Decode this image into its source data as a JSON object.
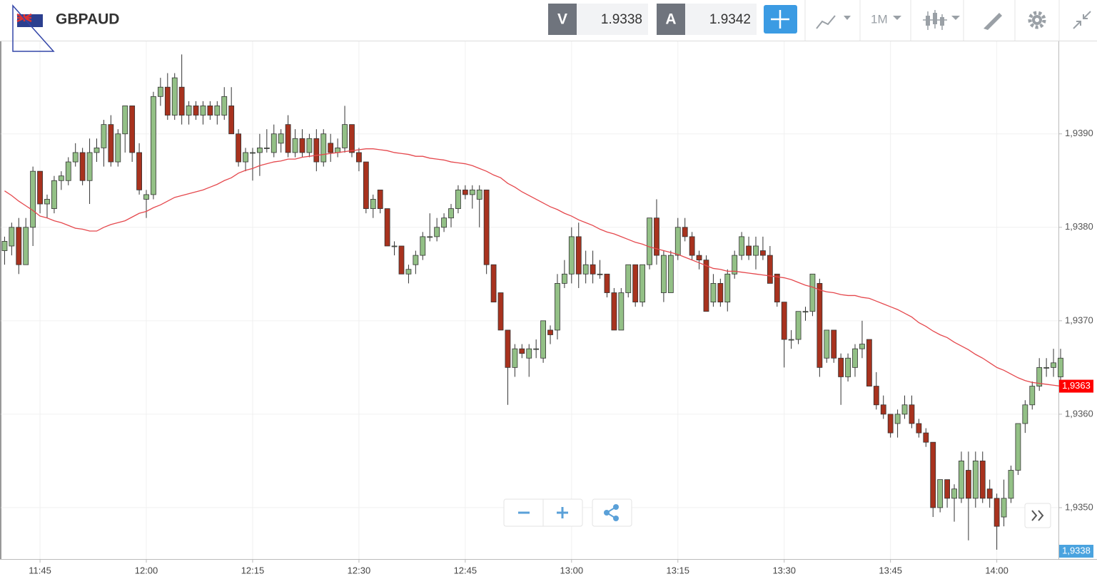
{
  "toolbar": {
    "symbol": "GBPAUD",
    "bid_label": "V",
    "bid": 1.9338,
    "ask_label": "A",
    "ask": 1.9342,
    "timeframe": "1M"
  },
  "chart_data": {
    "type": "candlestick",
    "categories": [
      null,
      null,
      null,
      null,
      null,
      "11:45",
      null,
      null,
      null,
      null,
      null,
      null,
      null,
      null,
      null,
      null,
      null,
      null,
      null,
      null,
      "12:00",
      null,
      null,
      null,
      null,
      null,
      null,
      null,
      null,
      null,
      null,
      null,
      null,
      null,
      null,
      "12:15",
      null,
      null,
      null,
      null,
      null,
      null,
      null,
      null,
      null,
      null,
      null,
      null,
      null,
      null,
      "12:30",
      null,
      null,
      null,
      null,
      null,
      null,
      null,
      null,
      null,
      null,
      null,
      null,
      null,
      null,
      "12:45",
      null,
      null,
      null,
      null,
      null,
      null,
      null,
      null,
      null,
      null,
      null,
      null,
      null,
      null,
      "13:00",
      null,
      null,
      null,
      null,
      null,
      null,
      null,
      null,
      null,
      null,
      null,
      null,
      null,
      null,
      "13:15",
      null,
      null,
      null,
      null,
      null,
      null,
      null,
      null,
      null,
      null,
      null,
      null,
      null,
      null,
      "13:30",
      null,
      null,
      null,
      null,
      null,
      null,
      null,
      null,
      null,
      null,
      null,
      null,
      null,
      null,
      "13:45",
      null,
      null,
      null,
      null,
      null,
      null,
      null,
      null,
      null,
      null,
      null,
      null,
      null,
      null,
      "14:00",
      null,
      null,
      null,
      null,
      null,
      null,
      null,
      null,
      null
    ],
    "candles": [
      [
        1.93775,
        1.9379,
        1.9376,
        1.93785
      ],
      [
        1.9378,
        1.93805,
        1.9377,
        1.938
      ],
      [
        1.938,
        1.9381,
        1.9375,
        1.9376
      ],
      [
        1.9376,
        1.9381,
        1.9376,
        1.938
      ],
      [
        1.938,
        1.93865,
        1.9378,
        1.9386
      ],
      [
        1.9386,
        1.9386,
        1.93815,
        1.93825
      ],
      [
        1.93825,
        1.93835,
        1.9381,
        1.9383
      ],
      [
        1.9382,
        1.93855,
        1.93815,
        1.9385
      ],
      [
        1.9385,
        1.9386,
        1.9384,
        1.93855
      ],
      [
        1.9385,
        1.93875,
        1.93845,
        1.9387
      ],
      [
        1.9387,
        1.9389,
        1.93865,
        1.9388
      ],
      [
        1.9388,
        1.93885,
        1.93845,
        1.9385
      ],
      [
        1.9385,
        1.93895,
        1.93825,
        1.9388
      ],
      [
        1.9388,
        1.93895,
        1.9387,
        1.93885
      ],
      [
        1.93885,
        1.93915,
        1.93865,
        1.9391
      ],
      [
        1.9391,
        1.9392,
        1.93865,
        1.9387
      ],
      [
        1.9387,
        1.93905,
        1.93865,
        1.939
      ],
      [
        1.939,
        1.9393,
        1.9388,
        1.9393
      ],
      [
        1.9393,
        1.9393,
        1.9387,
        1.9388
      ],
      [
        1.9388,
        1.9389,
        1.93835,
        1.9384
      ],
      [
        1.9383,
        1.9384,
        1.9381,
        1.93835
      ],
      [
        1.93835,
        1.93945,
        1.9383,
        1.9394
      ],
      [
        1.9394,
        1.9396,
        1.9393,
        1.9395
      ],
      [
        1.9395,
        1.93965,
        1.93915,
        1.9392
      ],
      [
        1.9392,
        1.93965,
        1.93915,
        1.9396
      ],
      [
        1.9395,
        1.93985,
        1.9391,
        1.9392
      ],
      [
        1.9392,
        1.93935,
        1.9391,
        1.9393
      ],
      [
        1.9393,
        1.93935,
        1.93915,
        1.9392
      ],
      [
        1.9392,
        1.93935,
        1.9391,
        1.9393
      ],
      [
        1.9393,
        1.93935,
        1.93915,
        1.9392
      ],
      [
        1.9392,
        1.93935,
        1.9391,
        1.9393
      ],
      [
        1.9392,
        1.9395,
        1.93915,
        1.9394
      ],
      [
        1.9393,
        1.9395,
        1.939,
        1.939
      ],
      [
        1.939,
        1.93905,
        1.93865,
        1.9387
      ],
      [
        1.9387,
        1.93885,
        1.9386,
        1.9388
      ],
      [
        1.9388,
        1.93885,
        1.9385,
        1.9388
      ],
      [
        1.9388,
        1.939,
        1.93855,
        1.93885
      ],
      [
        1.93885,
        1.93905,
        1.9388,
        1.93885
      ],
      [
        1.9388,
        1.9391,
        1.93875,
        1.939
      ],
      [
        1.9389,
        1.93905,
        1.9388,
        1.939
      ],
      [
        1.9391,
        1.9392,
        1.93875,
        1.9388
      ],
      [
        1.9388,
        1.93905,
        1.93875,
        1.93895
      ],
      [
        1.93895,
        1.93905,
        1.93875,
        1.9388
      ],
      [
        1.9388,
        1.939,
        1.93875,
        1.93895
      ],
      [
        1.93895,
        1.93905,
        1.9386,
        1.9387
      ],
      [
        1.9387,
        1.93905,
        1.93865,
        1.939
      ],
      [
        1.9389,
        1.939,
        1.9387,
        1.9388
      ],
      [
        1.9388,
        1.93895,
        1.93875,
        1.93885
      ],
      [
        1.93885,
        1.9393,
        1.9388,
        1.9391
      ],
      [
        1.9391,
        1.9391,
        1.93875,
        1.9388
      ],
      [
        1.9388,
        1.93885,
        1.9386,
        1.9387
      ],
      [
        1.9387,
        1.9387,
        1.93815,
        1.9382
      ],
      [
        1.9382,
        1.93835,
        1.9381,
        1.9383
      ],
      [
        1.9384,
        1.9384,
        1.93815,
        1.9382
      ],
      [
        1.9382,
        1.9382,
        1.9378,
        1.9378
      ],
      [
        1.9378,
        1.93785,
        1.9377,
        1.9378
      ],
      [
        1.9378,
        1.9378,
        1.9375,
        1.9375
      ],
      [
        1.9375,
        1.9376,
        1.9374,
        1.93755
      ],
      [
        1.9376,
        1.93775,
        1.9375,
        1.9377
      ],
      [
        1.9377,
        1.93795,
        1.93765,
        1.9379
      ],
      [
        1.9379,
        1.93815,
        1.93785,
        1.9379
      ],
      [
        1.9379,
        1.9381,
        1.93785,
        1.938
      ],
      [
        1.938,
        1.93815,
        1.93795,
        1.9381
      ],
      [
        1.9381,
        1.93825,
        1.938,
        1.9382
      ],
      [
        1.9382,
        1.93845,
        1.93815,
        1.9384
      ],
      [
        1.9384,
        1.93845,
        1.9383,
        1.93835
      ],
      [
        1.93835,
        1.93845,
        1.9382,
        1.9384
      ],
      [
        1.9383,
        1.93845,
        1.938,
        1.9384
      ],
      [
        1.9384,
        1.9384,
        1.9375,
        1.9376
      ],
      [
        1.9376,
        1.9376,
        1.9372,
        1.9372
      ],
      [
        1.9373,
        1.9373,
        1.9369,
        1.9369
      ],
      [
        1.9369,
        1.9369,
        1.9361,
        1.9365
      ],
      [
        1.9365,
        1.93675,
        1.9364,
        1.9367
      ],
      [
        1.9367,
        1.93675,
        1.9366,
        1.93665
      ],
      [
        1.9366,
        1.93675,
        1.9364,
        1.9367
      ],
      [
        1.9367,
        1.9368,
        1.9366,
        1.9367
      ],
      [
        1.9366,
        1.937,
        1.93655,
        1.937
      ],
      [
        1.9369,
        1.93695,
        1.93675,
        1.93685
      ],
      [
        1.9369,
        1.9375,
        1.9368,
        1.9374
      ],
      [
        1.9374,
        1.93765,
        1.93735,
        1.9375
      ],
      [
        1.9375,
        1.938,
        1.9374,
        1.9379
      ],
      [
        1.9379,
        1.93805,
        1.93735,
        1.9375
      ],
      [
        1.9375,
        1.93775,
        1.9374,
        1.9376
      ],
      [
        1.9376,
        1.93775,
        1.9374,
        1.9375
      ],
      [
        1.9375,
        1.93765,
        1.93745,
        1.9375
      ],
      [
        1.9375,
        1.9375,
        1.93725,
        1.9373
      ],
      [
        1.9373,
        1.93735,
        1.9369,
        1.9369
      ],
      [
        1.9369,
        1.93735,
        1.9369,
        1.9373
      ],
      [
        1.9373,
        1.9376,
        1.93725,
        1.9376
      ],
      [
        1.9376,
        1.9376,
        1.93715,
        1.9372
      ],
      [
        1.9372,
        1.9376,
        1.93715,
        1.9376
      ],
      [
        1.9376,
        1.9381,
        1.93755,
        1.9381
      ],
      [
        1.9381,
        1.9383,
        1.9376,
        1.9377
      ],
      [
        1.9373,
        1.93775,
        1.9372,
        1.9377
      ],
      [
        1.9373,
        1.93775,
        1.9373,
        1.9377
      ],
      [
        1.9377,
        1.9381,
        1.93765,
        1.938
      ],
      [
        1.938,
        1.9381,
        1.93785,
        1.9379
      ],
      [
        1.9379,
        1.93795,
        1.93765,
        1.9377
      ],
      [
        1.9377,
        1.93775,
        1.93755,
        1.93765
      ],
      [
        1.93765,
        1.9377,
        1.9371,
        1.9371
      ],
      [
        1.9372,
        1.9375,
        1.93715,
        1.9374
      ],
      [
        1.9374,
        1.93745,
        1.93715,
        1.9372
      ],
      [
        1.9372,
        1.93755,
        1.9371,
        1.9375
      ],
      [
        1.9375,
        1.93775,
        1.93745,
        1.9377
      ],
      [
        1.9377,
        1.93795,
        1.93765,
        1.9379
      ],
      [
        1.9378,
        1.9379,
        1.93765,
        1.9377
      ],
      [
        1.9377,
        1.9379,
        1.93755,
        1.9378
      ],
      [
        1.93775,
        1.9379,
        1.93765,
        1.9377
      ],
      [
        1.9377,
        1.9378,
        1.9374,
        1.9374
      ],
      [
        1.9375,
        1.9375,
        1.93715,
        1.9372
      ],
      [
        1.9372,
        1.9372,
        1.9365,
        1.9368
      ],
      [
        1.9368,
        1.9369,
        1.9367,
        1.9368
      ],
      [
        1.9368,
        1.9371,
        1.93675,
        1.9371
      ],
      [
        1.9371,
        1.93715,
        1.937,
        1.9371
      ],
      [
        1.9371,
        1.9375,
        1.93705,
        1.9375
      ],
      [
        1.9374,
        1.93745,
        1.9364,
        1.9365
      ],
      [
        1.9366,
        1.9369,
        1.93655,
        1.9369
      ],
      [
        1.9369,
        1.9369,
        1.93655,
        1.9366
      ],
      [
        1.9366,
        1.93665,
        1.9361,
        1.9364
      ],
      [
        1.9364,
        1.93665,
        1.93635,
        1.9366
      ],
      [
        1.9365,
        1.93675,
        1.9364,
        1.9367
      ],
      [
        1.9367,
        1.937,
        1.9366,
        1.93675
      ],
      [
        1.9368,
        1.9368,
        1.9363,
        1.9363
      ],
      [
        1.9363,
        1.93645,
        1.93605,
        1.9361
      ],
      [
        1.9361,
        1.9362,
        1.93595,
        1.936
      ],
      [
        1.936,
        1.936,
        1.93575,
        1.9358
      ],
      [
        1.9359,
        1.93605,
        1.93575,
        1.936
      ],
      [
        1.936,
        1.9362,
        1.93595,
        1.9361
      ],
      [
        1.9361,
        1.9362,
        1.93585,
        1.9359
      ],
      [
        1.9359,
        1.93595,
        1.93575,
        1.9358
      ],
      [
        1.9358,
        1.93585,
        1.93565,
        1.9357
      ],
      [
        1.9357,
        1.9357,
        1.9349,
        1.935
      ],
      [
        1.935,
        1.9353,
        1.93495,
        1.9353
      ],
      [
        1.9353,
        1.9353,
        1.935,
        1.9351
      ],
      [
        1.9351,
        1.93525,
        1.93485,
        1.9352
      ],
      [
        1.9351,
        1.9356,
        1.93505,
        1.9355
      ],
      [
        1.9354,
        1.9356,
        1.93465,
        1.9351
      ],
      [
        1.9351,
        1.9356,
        1.935,
        1.9355
      ],
      [
        1.9355,
        1.9356,
        1.93505,
        1.9351
      ],
      [
        1.9352,
        1.9353,
        1.935,
        1.9351
      ],
      [
        1.9351,
        1.93515,
        1.93455,
        1.9348
      ],
      [
        1.9349,
        1.9353,
        1.9348,
        1.9351
      ],
      [
        1.9351,
        1.93545,
        1.93505,
        1.9354
      ],
      [
        1.9354,
        1.9359,
        1.93535,
        1.9359
      ],
      [
        1.9359,
        1.93615,
        1.9358,
        1.9361
      ],
      [
        1.9361,
        1.93635,
        1.93605,
        1.9363
      ],
      [
        1.9363,
        1.9366,
        1.93625,
        1.9365
      ],
      [
        1.9365,
        1.9366,
        1.9364,
        1.9365
      ],
      [
        1.9365,
        1.9367,
        1.9364,
        1.93655
      ],
      [
        1.9364,
        1.9367,
        1.93635,
        1.9366
      ]
    ],
    "ma": [
      1.93839,
      1.93834,
      1.93828,
      1.93823,
      1.93818,
      1.93812,
      1.9381,
      1.93807,
      1.93805,
      1.93802,
      1.93799,
      1.93798,
      1.93796,
      1.93796,
      1.938,
      1.93803,
      1.93805,
      1.93807,
      1.93811,
      1.93815,
      1.93817,
      1.93821,
      1.93824,
      1.93828,
      1.93832,
      1.93834,
      1.93836,
      1.93838,
      1.9384,
      1.93843,
      1.93846,
      1.9385,
      1.93853,
      1.93858,
      1.93861,
      1.93863,
      1.93866,
      1.93868,
      1.9387,
      1.93871,
      1.93873,
      1.93873,
      1.93875,
      1.93876,
      1.93877,
      1.93878,
      1.93879,
      1.9388,
      1.93881,
      1.93882,
      1.93883,
      1.93884,
      1.93884,
      1.93883,
      1.93882,
      1.9388,
      1.93879,
      1.93878,
      1.93876,
      1.93876,
      1.93874,
      1.93873,
      1.93872,
      1.9387,
      1.93869,
      1.93868,
      1.93866,
      1.93863,
      1.9386,
      1.93856,
      1.93853,
      1.93847,
      1.93843,
      1.93838,
      1.93834,
      1.9383,
      1.93826,
      1.93822,
      1.93819,
      1.93815,
      1.93812,
      1.93808,
      1.93805,
      1.93802,
      1.93798,
      1.93795,
      1.93793,
      1.9379,
      1.93787,
      1.93784,
      1.93782,
      1.93779,
      1.93777,
      1.93775,
      1.93773,
      1.93771,
      1.93768,
      1.93765,
      1.93762,
      1.93759,
      1.93756,
      1.93755,
      1.93753,
      1.93753,
      1.93752,
      1.93751,
      1.9375,
      1.93749,
      1.93748,
      1.93747,
      1.93746,
      1.93744,
      1.93741,
      1.93738,
      1.93736,
      1.93733,
      1.93731,
      1.9373,
      1.93728,
      1.93727,
      1.93727,
      1.93725,
      1.93724,
      1.93721,
      1.93718,
      1.93715,
      1.93712,
      1.93708,
      1.93704,
      1.93698,
      1.93694,
      1.93689,
      1.93685,
      1.93682,
      1.93677,
      1.93673,
      1.93669,
      1.93664,
      1.9366,
      1.93655,
      1.9365,
      1.93647,
      1.93643,
      1.93639,
      1.93636,
      1.93634,
      1.93633,
      1.93632,
      1.93631,
      1.9363
    ],
    "ma_color": "#e5484d",
    "up_color": "#93c086",
    "down_color": "#a8321e",
    "ma_label": "1,9363",
    "price_label": "1,9338",
    "ylim": [
      1.93445,
      1.93999
    ],
    "yticks": [
      {
        "value": 1.935,
        "label": "1,9350"
      },
      {
        "value": 1.936,
        "label": "1,9360"
      },
      {
        "value": 1.937,
        "label": "1,9370"
      },
      {
        "value": 1.938,
        "label": "1,9380"
      },
      {
        "value": 1.939,
        "label": "1,9390"
      }
    ],
    "grid": true
  }
}
